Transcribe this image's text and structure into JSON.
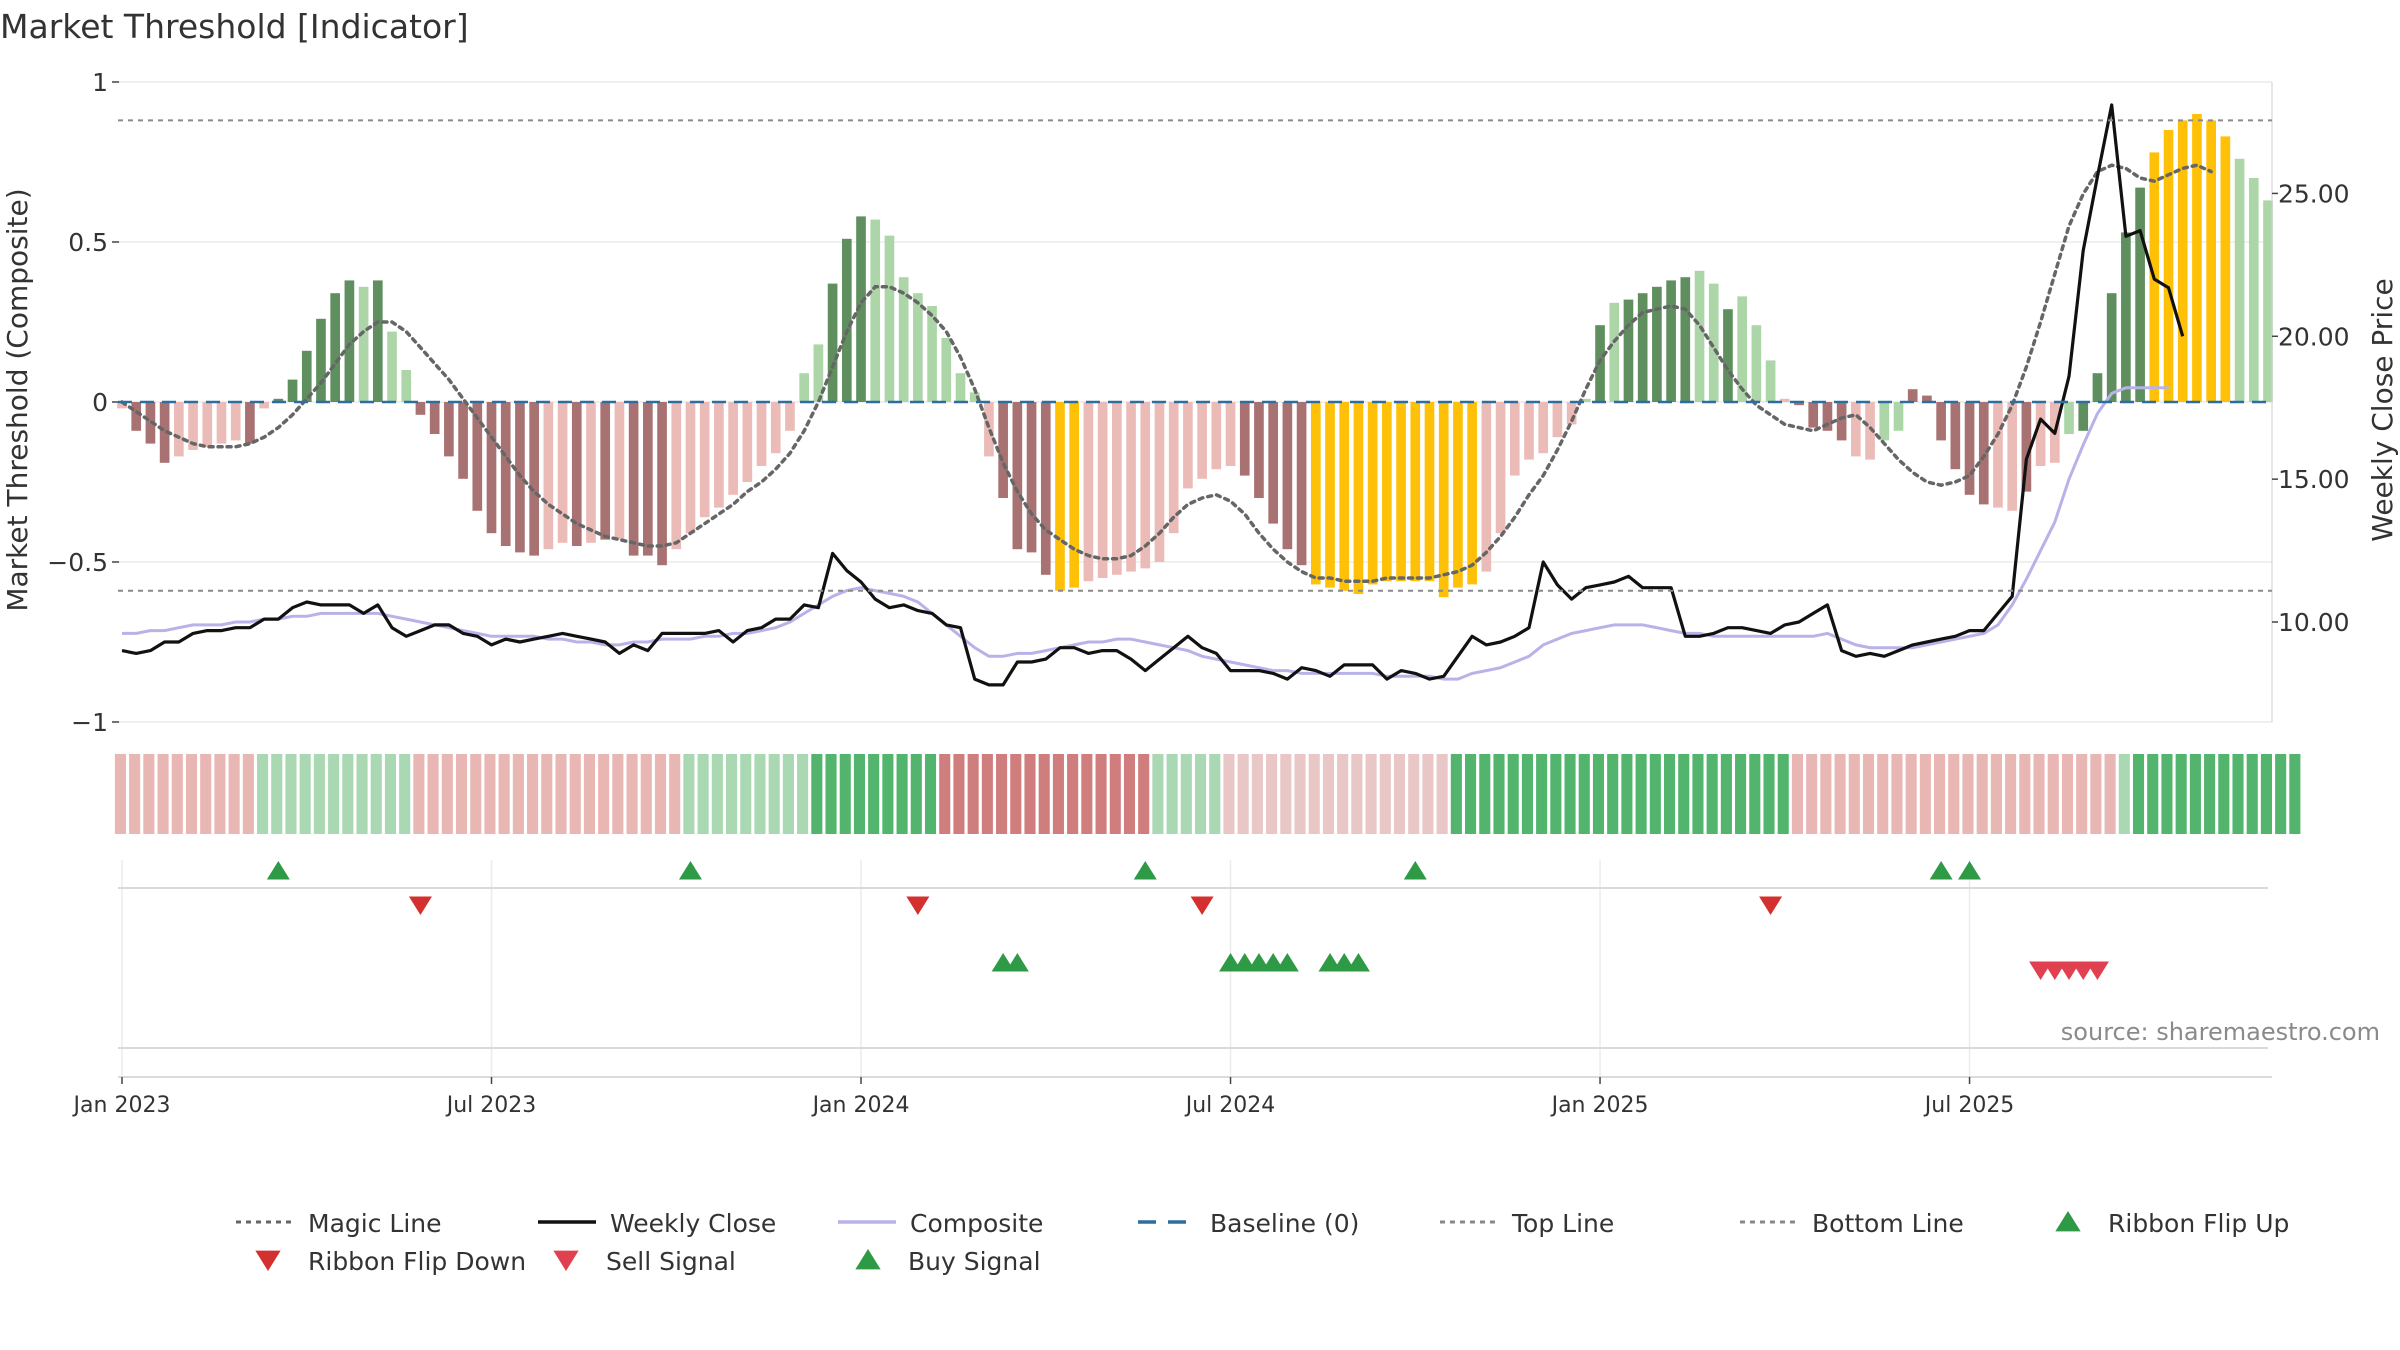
{
  "chart_data": {
    "type": "bar",
    "title": "Market Threshold [Indicator]",
    "ylabel_left": "Market Threshold (Composite)",
    "ylabel_right": "Weekly Close Price",
    "ylim_left": [
      -1,
      1
    ],
    "ylim_right": [
      6.5,
      28.9
    ],
    "yticks_left": [
      {
        "v": 1,
        "label": "1"
      },
      {
        "v": 0.5,
        "label": "0.5"
      },
      {
        "v": 0,
        "label": "0"
      },
      {
        "v": -0.5,
        "label": "−0.5"
      },
      {
        "v": -1,
        "label": "−1"
      }
    ],
    "yticks_right": [
      {
        "v": 25,
        "label": "25.00"
      },
      {
        "v": 20,
        "label": "20.00"
      },
      {
        "v": 15,
        "label": "15.00"
      },
      {
        "v": 10,
        "label": "10.00"
      }
    ],
    "x_start": "2023-01-01",
    "x_end": "2025-10-19",
    "xticks": [
      {
        "week": 0,
        "label": "Jan 2023"
      },
      {
        "week": 26,
        "label": "Jul 2023"
      },
      {
        "week": 52,
        "label": "Jan 2024"
      },
      {
        "week": 78,
        "label": "Jul 2024"
      },
      {
        "week": 104,
        "label": "Jan 2025"
      },
      {
        "week": 130,
        "label": "Jul 2025"
      }
    ],
    "top_line": 0.88,
    "bottom_line": -0.59,
    "baseline": 0,
    "composite_bars": [
      -0.02,
      -0.09,
      -0.13,
      -0.19,
      -0.17,
      -0.15,
      -0.14,
      -0.13,
      -0.12,
      -0.13,
      -0.02,
      0.01,
      0.07,
      0.16,
      0.26,
      0.34,
      0.38,
      0.36,
      0.38,
      0.22,
      0.1,
      -0.04,
      -0.1,
      -0.17,
      -0.24,
      -0.34,
      -0.41,
      -0.45,
      -0.47,
      -0.48,
      -0.46,
      -0.44,
      -0.45,
      -0.44,
      -0.43,
      -0.43,
      -0.48,
      -0.48,
      -0.51,
      -0.46,
      -0.41,
      -0.36,
      -0.33,
      -0.29,
      -0.25,
      -0.2,
      -0.16,
      -0.09,
      0.09,
      0.18,
      0.37,
      0.51,
      0.58,
      0.57,
      0.52,
      0.39,
      0.34,
      0.3,
      0.2,
      0.09,
      0.03,
      -0.17,
      -0.3,
      -0.46,
      -0.47,
      -0.54,
      -0.59,
      -0.58,
      -0.56,
      -0.55,
      -0.54,
      -0.53,
      -0.52,
      -0.5,
      -0.41,
      -0.27,
      -0.24,
      -0.21,
      -0.2,
      -0.23,
      -0.3,
      -0.38,
      -0.46,
      -0.51,
      -0.57,
      -0.58,
      -0.59,
      -0.6,
      -0.57,
      -0.56,
      -0.56,
      -0.56,
      -0.56,
      -0.61,
      -0.58,
      -0.57,
      -0.53,
      -0.41,
      -0.23,
      -0.18,
      -0.16,
      -0.11,
      -0.07,
      0.01,
      0.24,
      0.31,
      0.32,
      0.34,
      0.36,
      0.38,
      0.39,
      0.41,
      0.37,
      0.29,
      0.33,
      0.24,
      0.13,
      0.01,
      -0.01,
      -0.08,
      -0.09,
      -0.12,
      -0.17,
      -0.18,
      -0.12,
      -0.09,
      0.04,
      0.02,
      -0.12,
      -0.21,
      -0.29,
      -0.32,
      -0.33,
      -0.34,
      -0.28,
      -0.2,
      -0.19,
      -0.1,
      -0.09,
      0.09,
      0.34,
      0.53,
      0.67,
      0.78,
      0.85,
      0.88,
      0.9,
      0.88,
      0.83,
      0.76,
      0.7,
      0.63
    ],
    "composite_bar_colors": [
      "pos_dark",
      "pos_light",
      "neg_dark",
      "neg_light",
      "golden"
    ],
    "bar_categories": [
      3,
      2,
      2,
      2,
      3,
      3,
      3,
      3,
      3,
      2,
      3,
      0,
      0,
      0,
      0,
      0,
      0,
      1,
      0,
      1,
      1,
      2,
      2,
      2,
      2,
      2,
      2,
      2,
      2,
      2,
      3,
      3,
      2,
      3,
      2,
      3,
      2,
      2,
      2,
      3,
      3,
      3,
      3,
      3,
      3,
      3,
      3,
      3,
      1,
      1,
      0,
      0,
      0,
      1,
      1,
      1,
      1,
      1,
      1,
      1,
      1,
      3,
      2,
      2,
      2,
      2,
      4,
      4,
      3,
      3,
      3,
      3,
      3,
      3,
      3,
      3,
      3,
      3,
      3,
      2,
      2,
      2,
      2,
      2,
      4,
      4,
      4,
      4,
      4,
      4,
      4,
      4,
      4,
      4,
      4,
      4,
      3,
      3,
      3,
      3,
      3,
      3,
      3,
      1,
      0,
      1,
      0,
      0,
      0,
      0,
      0,
      1,
      1,
      0,
      1,
      1,
      1,
      3,
      2,
      2,
      2,
      2,
      3,
      3,
      1,
      1,
      2,
      2,
      2,
      2,
      2,
      2,
      3,
      3,
      2,
      3,
      3,
      1,
      0,
      0,
      0,
      0,
      0,
      4,
      4,
      4,
      4,
      4,
      4,
      1,
      1,
      1,
      1
    ],
    "magic_line": [
      0.0,
      -0.03,
      -0.06,
      -0.09,
      -0.11,
      -0.13,
      -0.14,
      -0.14,
      -0.14,
      -0.13,
      -0.11,
      -0.08,
      -0.04,
      0.01,
      0.06,
      0.12,
      0.18,
      0.22,
      0.25,
      0.25,
      0.22,
      0.17,
      0.12,
      0.07,
      0.01,
      -0.05,
      -0.11,
      -0.17,
      -0.23,
      -0.28,
      -0.32,
      -0.35,
      -0.38,
      -0.4,
      -0.42,
      -0.43,
      -0.44,
      -0.45,
      -0.45,
      -0.44,
      -0.41,
      -0.38,
      -0.35,
      -0.32,
      -0.28,
      -0.25,
      -0.21,
      -0.16,
      -0.09,
      0.0,
      0.11,
      0.22,
      0.31,
      0.36,
      0.36,
      0.34,
      0.31,
      0.27,
      0.22,
      0.14,
      0.04,
      -0.08,
      -0.19,
      -0.28,
      -0.35,
      -0.4,
      -0.43,
      -0.46,
      -0.48,
      -0.49,
      -0.49,
      -0.48,
      -0.45,
      -0.41,
      -0.36,
      -0.32,
      -0.3,
      -0.29,
      -0.31,
      -0.35,
      -0.41,
      -0.46,
      -0.5,
      -0.53,
      -0.55,
      -0.55,
      -0.56,
      -0.56,
      -0.56,
      -0.55,
      -0.55,
      -0.55,
      -0.55,
      -0.54,
      -0.53,
      -0.51,
      -0.47,
      -0.42,
      -0.36,
      -0.29,
      -0.23,
      -0.15,
      -0.06,
      0.04,
      0.13,
      0.19,
      0.24,
      0.28,
      0.29,
      0.3,
      0.29,
      0.24,
      0.17,
      0.1,
      0.04,
      -0.01,
      -0.04,
      -0.07,
      -0.08,
      -0.09,
      -0.07,
      -0.05,
      -0.04,
      -0.08,
      -0.13,
      -0.18,
      -0.22,
      -0.25,
      -0.26,
      -0.25,
      -0.23,
      -0.17,
      -0.1,
      -0.01,
      0.11,
      0.25,
      0.4,
      0.55,
      0.65,
      0.72,
      0.74,
      0.73,
      0.7,
      0.69,
      0.71,
      0.73,
      0.74,
      0.72
    ],
    "weekly_close": [
      9.0,
      8.9,
      9.0,
      9.3,
      9.3,
      9.6,
      9.7,
      9.7,
      9.8,
      9.8,
      10.1,
      10.1,
      10.5,
      10.7,
      10.6,
      10.6,
      10.6,
      10.3,
      10.6,
      9.8,
      9.5,
      9.7,
      9.9,
      9.9,
      9.6,
      9.5,
      9.2,
      9.4,
      9.3,
      9.4,
      9.5,
      9.6,
      9.5,
      9.4,
      9.3,
      8.9,
      9.2,
      9.0,
      9.6,
      9.6,
      9.6,
      9.6,
      9.7,
      9.3,
      9.7,
      9.8,
      10.1,
      10.1,
      10.6,
      10.5,
      12.4,
      11.8,
      11.4,
      10.8,
      10.5,
      10.6,
      10.4,
      10.3,
      9.9,
      9.8,
      8.0,
      7.8,
      7.8,
      8.6,
      8.6,
      8.7,
      9.1,
      9.1,
      8.9,
      9.0,
      9.0,
      8.7,
      8.3,
      8.7,
      9.1,
      9.5,
      9.1,
      8.9,
      8.3,
      8.3,
      8.3,
      8.2,
      8.0,
      8.4,
      8.3,
      8.1,
      8.5,
      8.5,
      8.5,
      8.0,
      8.3,
      8.2,
      8.0,
      8.1,
      8.8,
      9.5,
      9.2,
      9.3,
      9.5,
      9.8,
      12.1,
      11.3,
      10.8,
      11.2,
      11.3,
      11.4,
      11.6,
      11.2,
      11.2,
      11.2,
      9.5,
      9.5,
      9.6,
      9.8,
      9.8,
      9.7,
      9.6,
      9.9,
      10.0,
      10.3,
      10.6,
      9.0,
      8.8,
      8.9,
      8.8,
      9.0,
      9.2,
      9.3,
      9.4,
      9.5,
      9.7,
      9.7,
      10.3,
      10.9,
      15.7,
      17.1,
      16.6,
      18.6,
      23.0,
      25.6,
      28.1,
      23.5,
      23.7,
      22.0,
      21.7,
      20.0
    ],
    "composite_line": [
      9.6,
      9.6,
      9.7,
      9.7,
      9.8,
      9.9,
      9.9,
      9.9,
      10.0,
      10.0,
      10.1,
      10.1,
      10.2,
      10.2,
      10.3,
      10.3,
      10.3,
      10.3,
      10.3,
      10.2,
      10.1,
      10.0,
      9.9,
      9.8,
      9.7,
      9.6,
      9.5,
      9.5,
      9.5,
      9.5,
      9.4,
      9.4,
      9.3,
      9.3,
      9.2,
      9.2,
      9.3,
      9.3,
      9.4,
      9.4,
      9.4,
      9.5,
      9.5,
      9.6,
      9.6,
      9.7,
      9.8,
      10.0,
      10.3,
      10.6,
      10.9,
      11.1,
      11.2,
      11.1,
      11.0,
      10.9,
      10.7,
      10.3,
      9.9,
      9.5,
      9.1,
      8.8,
      8.8,
      8.9,
      8.9,
      9.0,
      9.1,
      9.2,
      9.3,
      9.3,
      9.4,
      9.4,
      9.3,
      9.2,
      9.1,
      9.0,
      8.8,
      8.7,
      8.6,
      8.5,
      8.4,
      8.3,
      8.3,
      8.2,
      8.2,
      8.2,
      8.2,
      8.2,
      8.2,
      8.1,
      8.1,
      8.1,
      8.1,
      8.0,
      8.0,
      8.2,
      8.3,
      8.4,
      8.6,
      8.8,
      9.2,
      9.4,
      9.6,
      9.7,
      9.8,
      9.9,
      9.9,
      9.9,
      9.8,
      9.7,
      9.6,
      9.6,
      9.5,
      9.5,
      9.5,
      9.5,
      9.5,
      9.5,
      9.5,
      9.5,
      9.6,
      9.4,
      9.2,
      9.1,
      9.1,
      9.1,
      9.1,
      9.2,
      9.3,
      9.4,
      9.5,
      9.6,
      9.9,
      10.6,
      11.5,
      12.5,
      13.5,
      15.0,
      16.2,
      17.3,
      18.0,
      18.2,
      18.2,
      18.2,
      18.2
    ],
    "ribbon": [
      3,
      3,
      3,
      3,
      3,
      3,
      3,
      3,
      3,
      3,
      1,
      1,
      1,
      1,
      1,
      1,
      1,
      1,
      1,
      1,
      1,
      3,
      3,
      3,
      3,
      3,
      3,
      3,
      3,
      3,
      3,
      3,
      3,
      3,
      3,
      3,
      3,
      3,
      3,
      3,
      1,
      1,
      1,
      1,
      1,
      1,
      1,
      1,
      1,
      0,
      0,
      0,
      0,
      0,
      0,
      0,
      0,
      0,
      2,
      2,
      2,
      2,
      2,
      2,
      2,
      2,
      2,
      2,
      2,
      2,
      2,
      2,
      2,
      1,
      1,
      1,
      1,
      1,
      4,
      4,
      4,
      4,
      4,
      4,
      4,
      4,
      4,
      4,
      4,
      4,
      4,
      4,
      4,
      4,
      0,
      0,
      0,
      0,
      0,
      0,
      0,
      0,
      0,
      0,
      0,
      0,
      0,
      0,
      0,
      0,
      0,
      0,
      0,
      0,
      0,
      0,
      0,
      0,
      3,
      3,
      3,
      3,
      3,
      3,
      3,
      3,
      3,
      3,
      3,
      3,
      3,
      3,
      3,
      3,
      3,
      3,
      3,
      3,
      3,
      3,
      3,
      1,
      0,
      0,
      0,
      0,
      0,
      0,
      0,
      0,
      0,
      0,
      0,
      0
    ],
    "ribbon_colors": [
      "#52b46d",
      "#a9d8b2",
      "#cf7d7d",
      "#e8b6b3",
      "#e9c7c6"
    ],
    "ribbon_flip_up": [
      11,
      40,
      72,
      91,
      128,
      130
    ],
    "ribbon_flip_down": [
      21,
      56,
      76,
      116
    ],
    "buy_signals": [
      62,
      63,
      78,
      79,
      80,
      81,
      82,
      85,
      86,
      87
    ],
    "sell_signals": [
      135,
      136,
      137,
      138,
      139
    ],
    "legend": [
      {
        "label": "Magic Line",
        "kind": "dotted",
        "color": "#666666"
      },
      {
        "label": "Weekly Close",
        "kind": "solid",
        "color": "#111111"
      },
      {
        "label": "Composite",
        "kind": "solid",
        "color": "#b7b3e8"
      },
      {
        "label": "Baseline (0)",
        "kind": "dashed",
        "color": "#2d6e9e"
      },
      {
        "label": "Top Line",
        "kind": "dotted",
        "color": "#888888"
      },
      {
        "label": "Bottom Line",
        "kind": "dotted",
        "color": "#888888"
      },
      {
        "label": "Ribbon Flip Up",
        "kind": "tri-up",
        "color": "#2e9a46"
      },
      {
        "label": "Ribbon Flip Down",
        "kind": "tri-down",
        "color": "#d43030"
      },
      {
        "label": "Sell Signal",
        "kind": "tri-down",
        "color": "#e0404f"
      },
      {
        "label": "Buy Signal",
        "kind": "tri-up",
        "color": "#2e9a46"
      }
    ],
    "source": "source: sharemaestro.com",
    "colors": {
      "pos_dark": "#5f8f5f",
      "pos_light": "#acd6a8",
      "neg_dark": "#a87272",
      "neg_light": "#ebbcb7",
      "golden": "#ffc107"
    }
  }
}
